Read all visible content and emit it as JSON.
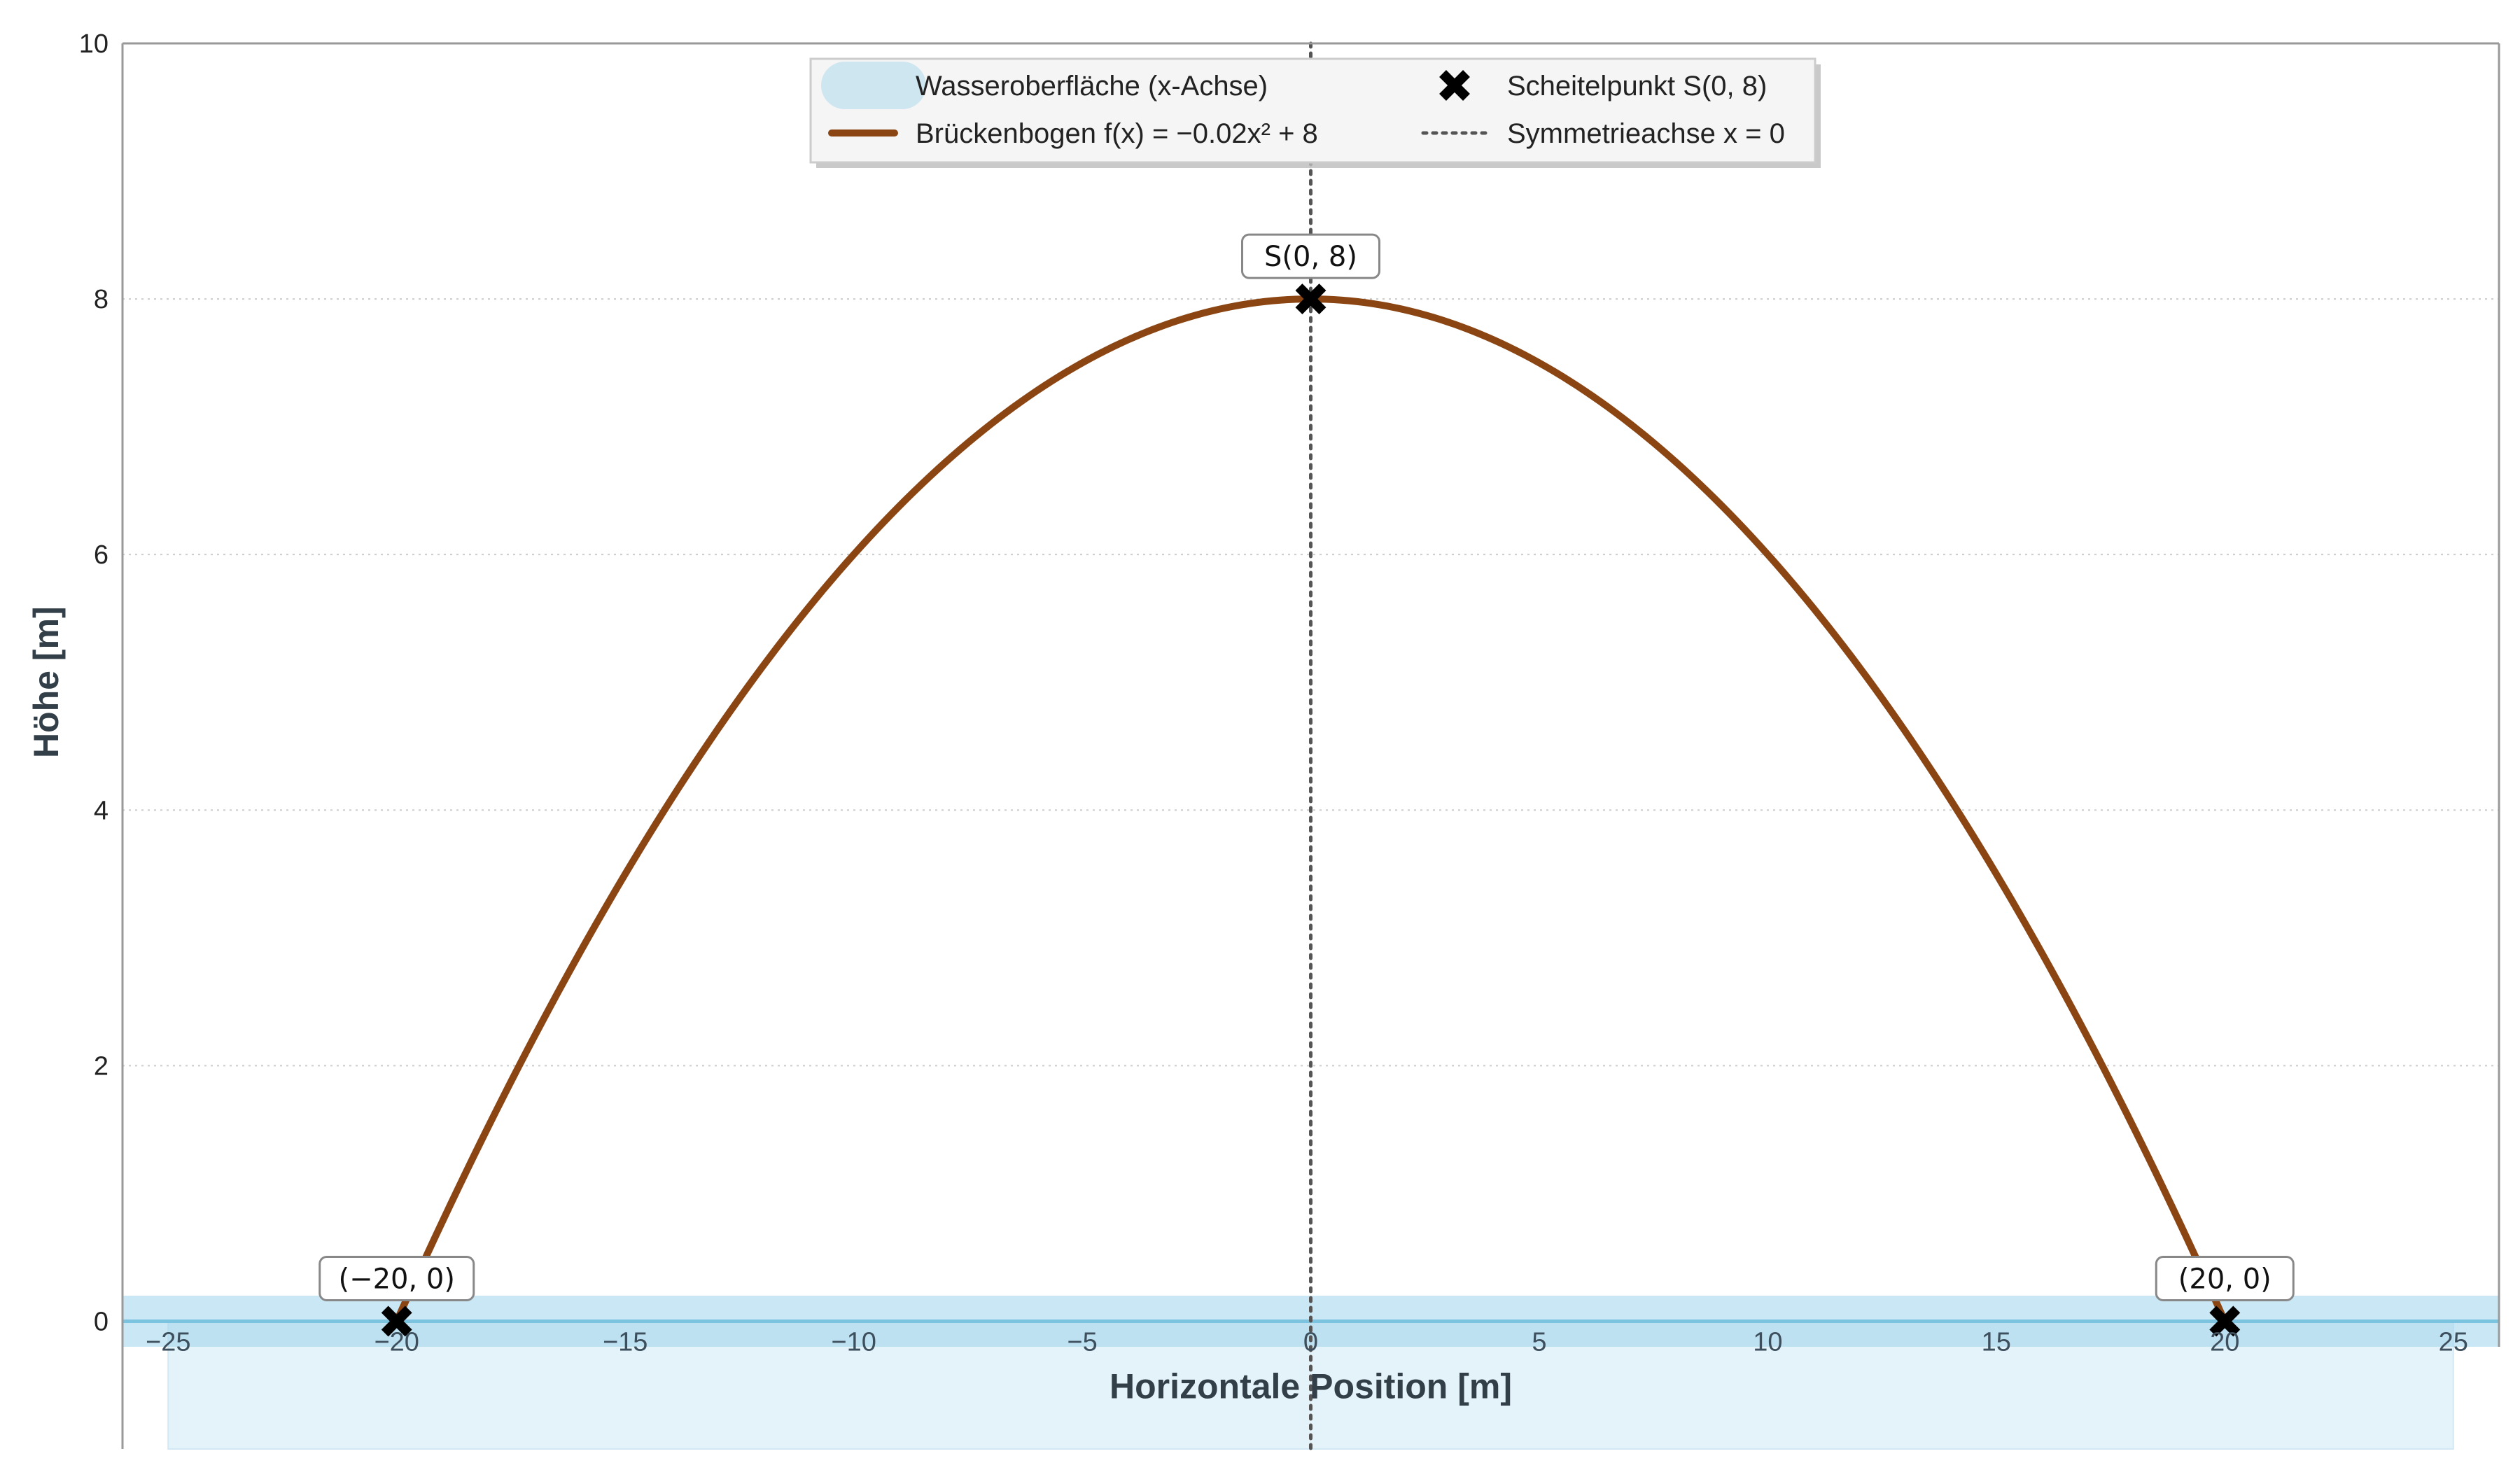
{
  "chart_data": {
    "type": "line",
    "xlabel": "Horizontale Position [m]",
    "ylabel": "Höhe [m]",
    "xlim": [
      -26,
      26
    ],
    "ylim": [
      -1,
      10
    ],
    "xticks": [
      -25,
      -20,
      -15,
      -10,
      -5,
      0,
      5,
      10,
      15,
      20,
      25
    ],
    "yticks": [
      0,
      2,
      4,
      6,
      8,
      10
    ],
    "xtick_labels": [
      "−25",
      "−20",
      "−15",
      "−10",
      "−5",
      "0",
      "5",
      "10",
      "15",
      "20",
      "25"
    ],
    "ytick_labels": [
      "0",
      "2",
      "4",
      "6",
      "8",
      "10"
    ],
    "grid": "horizontal dotted",
    "legend_position": "top-center",
    "series": [
      {
        "name": "Brückenbogen f(x) = −0.02x² + 8",
        "kind": "curve",
        "formula": "f(x) = -0.02x^2 + 8",
        "a": -0.02,
        "c": 8,
        "domain": [
          -20,
          20
        ],
        "color": "#8b4513"
      },
      {
        "name": "Wasseroberfläche (x-Achse)",
        "kind": "band",
        "y": 0,
        "y_range": [
          -0.2,
          0.2
        ],
        "color": "#9fd4ec"
      },
      {
        "name": "Scheitelpunkt S(0, 8)",
        "kind": "marker",
        "x": [
          0
        ],
        "y": [
          8
        ],
        "color": "#000000"
      },
      {
        "name": "Symmetrieachse x = 0",
        "kind": "vline",
        "x": 0,
        "color": "#555555"
      }
    ],
    "intercepts": [
      {
        "x": -20,
        "y": 0
      },
      {
        "x": 20,
        "y": 0
      }
    ],
    "annotations": [
      {
        "text": "S(0, 8)",
        "x": 0,
        "y": 8
      },
      {
        "text": "(−20, 0)",
        "x": -20,
        "y": 0
      },
      {
        "text": "(20, 0)",
        "x": 20,
        "y": 0
      }
    ],
    "legend": [
      {
        "label": "Wasseroberfläche (x-Achse)",
        "symbol": "band"
      },
      {
        "label": "Scheitelpunkt S(0, 8)",
        "symbol": "x-marker"
      },
      {
        "label": "Brückenbogen f(x) = −0.02x² + 8",
        "symbol": "line"
      },
      {
        "label": "Symmetrieachse x = 0",
        "symbol": "dotted-line"
      }
    ],
    "colors": {
      "arch": "#8b4513",
      "water": "#9fd4ec",
      "water_line": "#7cc3e0",
      "marker": "#000000",
      "axis_line": "#555555",
      "grid": "#cccccc"
    }
  }
}
